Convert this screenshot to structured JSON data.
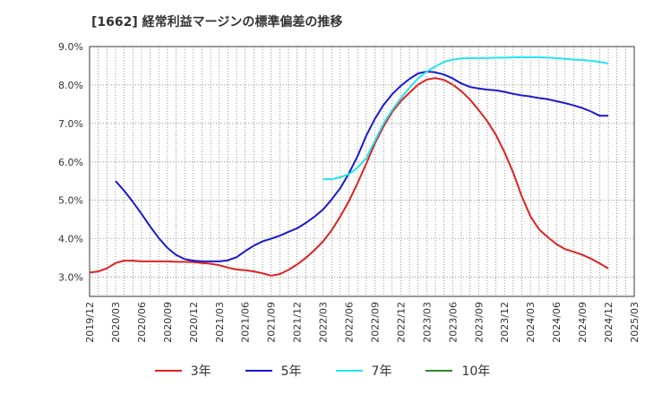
{
  "title": "[1662]  経常利益マージンの標準偏差の推移",
  "chart_data": {
    "type": "line",
    "title": "[1662]  経常利益マージンの標準偏差の推移",
    "xlabel": "",
    "ylabel": "",
    "ylim": [
      2.5,
      9.0
    ],
    "y_ticks": [
      3.0,
      4.0,
      5.0,
      6.0,
      7.0,
      8.0,
      9.0
    ],
    "y_tick_labels": [
      "3.0%",
      "4.0%",
      "5.0%",
      "6.0%",
      "7.0%",
      "8.0%",
      "9.0%"
    ],
    "x_tick_labels": [
      "2019/12",
      "2020/03",
      "2020/06",
      "2020/09",
      "2020/12",
      "2021/03",
      "2021/06",
      "2021/09",
      "2021/12",
      "2022/03",
      "2022/06",
      "2022/09",
      "2022/12",
      "2023/03",
      "2023/06",
      "2023/09",
      "2023/12",
      "2024/03",
      "2024/06",
      "2024/09",
      "2024/12",
      "2025/03"
    ],
    "grid": true,
    "legend_position": "bottom",
    "series": [
      {
        "name": "3年",
        "color": "#dd2222",
        "x": [
          "2019/12",
          "2020/01",
          "2020/02",
          "2020/03",
          "2020/04",
          "2020/05",
          "2020/06",
          "2020/07",
          "2020/08",
          "2020/09",
          "2020/10",
          "2020/11",
          "2020/12",
          "2021/01",
          "2021/02",
          "2021/03",
          "2021/04",
          "2021/05",
          "2021/06",
          "2021/07",
          "2021/08",
          "2021/09",
          "2021/10",
          "2021/11",
          "2021/12",
          "2022/01",
          "2022/02",
          "2022/03",
          "2022/04",
          "2022/05",
          "2022/06",
          "2022/07",
          "2022/08",
          "2022/09",
          "2022/10",
          "2022/11",
          "2022/12",
          "2023/01",
          "2023/02",
          "2023/03",
          "2023/04",
          "2023/05",
          "2023/06",
          "2023/07",
          "2023/08",
          "2023/09",
          "2023/10",
          "2023/11",
          "2023/12",
          "2024/01",
          "2024/02",
          "2024/03",
          "2024/04",
          "2024/05",
          "2024/06",
          "2024/07",
          "2024/08",
          "2024/09",
          "2024/10",
          "2024/11",
          "2024/12"
        ],
        "values": [
          3.12,
          3.15,
          3.23,
          3.37,
          3.43,
          3.43,
          3.41,
          3.41,
          3.41,
          3.41,
          3.4,
          3.4,
          3.39,
          3.37,
          3.35,
          3.31,
          3.25,
          3.2,
          3.18,
          3.15,
          3.1,
          3.04,
          3.08,
          3.19,
          3.33,
          3.5,
          3.7,
          3.93,
          4.22,
          4.58,
          4.98,
          5.45,
          5.95,
          6.48,
          6.92,
          7.3,
          7.58,
          7.8,
          8.01,
          8.14,
          8.18,
          8.13,
          8.01,
          7.84,
          7.62,
          7.35,
          7.06,
          6.7,
          6.25,
          5.72,
          5.1,
          4.58,
          4.24,
          4.04,
          3.86,
          3.73,
          3.66,
          3.58,
          3.48,
          3.36,
          3.23
        ]
      },
      {
        "name": "5年",
        "color": "#1a1acc",
        "x": [
          "2020/03",
          "2020/04",
          "2020/05",
          "2020/06",
          "2020/07",
          "2020/08",
          "2020/09",
          "2020/10",
          "2020/11",
          "2020/12",
          "2021/01",
          "2021/02",
          "2021/03",
          "2021/04",
          "2021/05",
          "2021/06",
          "2021/07",
          "2021/08",
          "2021/09",
          "2021/10",
          "2021/11",
          "2021/12",
          "2022/01",
          "2022/02",
          "2022/03",
          "2022/04",
          "2022/05",
          "2022/06",
          "2022/07",
          "2022/08",
          "2022/09",
          "2022/10",
          "2022/11",
          "2022/12",
          "2023/01",
          "2023/02",
          "2023/03",
          "2023/04",
          "2023/05",
          "2023/06",
          "2023/07",
          "2023/08",
          "2023/09",
          "2023/10",
          "2023/11",
          "2023/12",
          "2024/01",
          "2024/02",
          "2024/03",
          "2024/04",
          "2024/05",
          "2024/06",
          "2024/07",
          "2024/08",
          "2024/09",
          "2024/10",
          "2024/11",
          "2024/12"
        ],
        "values": [
          5.5,
          5.25,
          4.96,
          4.65,
          4.32,
          4.02,
          3.76,
          3.58,
          3.47,
          3.43,
          3.41,
          3.41,
          3.41,
          3.44,
          3.52,
          3.68,
          3.82,
          3.93,
          4.0,
          4.08,
          4.18,
          4.27,
          4.41,
          4.57,
          4.76,
          5.02,
          5.32,
          5.7,
          6.15,
          6.68,
          7.12,
          7.48,
          7.76,
          7.98,
          8.16,
          8.3,
          8.35,
          8.33,
          8.27,
          8.17,
          8.04,
          7.95,
          7.91,
          7.88,
          7.86,
          7.82,
          7.77,
          7.73,
          7.7,
          7.66,
          7.63,
          7.58,
          7.53,
          7.47,
          7.4,
          7.31,
          7.2,
          7.2
        ]
      },
      {
        "name": "7年",
        "color": "#22e5ee",
        "x": [
          "2022/03",
          "2022/04",
          "2022/05",
          "2022/06",
          "2022/07",
          "2022/08",
          "2022/09",
          "2022/10",
          "2022/11",
          "2022/12",
          "2023/01",
          "2023/02",
          "2023/03",
          "2023/04",
          "2023/05",
          "2023/06",
          "2023/07",
          "2023/08",
          "2023/09",
          "2023/10",
          "2023/11",
          "2023/12",
          "2024/01",
          "2024/02",
          "2024/03",
          "2024/04",
          "2024/05",
          "2024/06",
          "2024/07",
          "2024/08",
          "2024/09",
          "2024/10",
          "2024/11",
          "2024/12"
        ],
        "values": [
          5.55,
          5.55,
          5.6,
          5.68,
          5.85,
          6.1,
          6.55,
          7.0,
          7.35,
          7.65,
          7.93,
          8.17,
          8.35,
          8.48,
          8.6,
          8.66,
          8.69,
          8.7,
          8.7,
          8.7,
          8.71,
          8.71,
          8.72,
          8.72,
          8.72,
          8.72,
          8.71,
          8.7,
          8.68,
          8.66,
          8.65,
          8.63,
          8.6,
          8.56
        ]
      },
      {
        "name": "10年",
        "color": "#2a8a2a",
        "x": [],
        "values": []
      }
    ]
  }
}
